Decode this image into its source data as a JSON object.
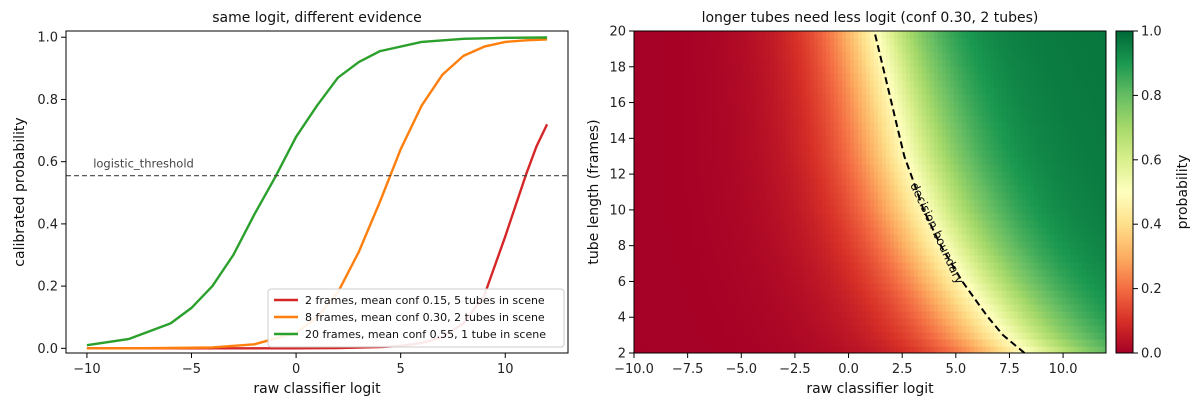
{
  "chart_data": [
    {
      "type": "line",
      "title": "same logit, different evidence",
      "xlabel": "raw classifier logit",
      "ylabel": "calibrated probability",
      "xlim": [
        -11,
        13
      ],
      "ylim": [
        -0.015,
        1.02
      ],
      "xticks": [
        -10,
        -5,
        0,
        5,
        10
      ],
      "yticks": [
        0.0,
        0.2,
        0.4,
        0.6,
        0.8,
        1.0
      ],
      "grid": false,
      "legend_position": "lower-right",
      "threshold": {
        "label": "logistic_threshold",
        "value": 0.555
      },
      "series": [
        {
          "name": "2 frames, mean conf 0.15, 5 tubes in scene",
          "color": "#d62728",
          "x": [
            -10,
            -8,
            -6,
            -4,
            -2,
            0,
            2,
            4,
            5,
            6,
            7,
            8,
            9,
            10,
            10.5,
            11,
            11.5,
            12
          ],
          "y": [
            0.0,
            0.0,
            0.0,
            0.0,
            0.0,
            0.0,
            0.001,
            0.004,
            0.008,
            0.017,
            0.036,
            0.08,
            0.17,
            0.36,
            0.46,
            0.56,
            0.65,
            0.72
          ]
        },
        {
          "name": "8 frames, mean conf 0.30, 2 tubes in scene",
          "color": "#ff7f0e",
          "x": [
            -10,
            -8,
            -6,
            -4,
            -2,
            0,
            1,
            2,
            3,
            4,
            5,
            6,
            7,
            8,
            9,
            10,
            11,
            12
          ],
          "y": [
            0.0,
            0.0,
            0.001,
            0.003,
            0.013,
            0.05,
            0.1,
            0.18,
            0.31,
            0.47,
            0.64,
            0.78,
            0.88,
            0.94,
            0.97,
            0.985,
            0.99,
            0.993
          ]
        },
        {
          "name": "20 frames, mean conf 0.55, 1 tube in scene",
          "color": "#2ca02c",
          "x": [
            -10,
            -8,
            -6,
            -5,
            -4,
            -3,
            -2,
            -1,
            0,
            1,
            2,
            3,
            4,
            6,
            8,
            10,
            12
          ],
          "y": [
            0.01,
            0.03,
            0.08,
            0.13,
            0.2,
            0.3,
            0.43,
            0.55,
            0.68,
            0.78,
            0.87,
            0.92,
            0.955,
            0.985,
            0.995,
            0.998,
            0.999
          ]
        }
      ]
    },
    {
      "type": "heatmap",
      "title": "longer tubes need less logit (conf 0.30, 2 tubes)",
      "xlabel": "raw classifier logit",
      "ylabel": "tube length (frames)",
      "xlim": [
        -10,
        12
      ],
      "ylim": [
        2,
        20
      ],
      "xticks": [
        -10.0,
        -7.5,
        -5.0,
        -2.5,
        0.0,
        2.5,
        5.0,
        7.5,
        10.0
      ],
      "yticks": [
        2,
        4,
        6,
        8,
        10,
        12,
        14,
        16,
        18,
        20
      ],
      "colormap": "RdYlGn",
      "colorbar": {
        "label": "probability",
        "range": [
          0.0,
          1.0
        ],
        "ticks": [
          0.0,
          0.2,
          0.4,
          0.6,
          0.8,
          1.0
        ]
      },
      "decision_boundary": {
        "label": "decision boundary",
        "frames": [
          2,
          3,
          4,
          5,
          6,
          7,
          8,
          9,
          10,
          11,
          12,
          13,
          14,
          15,
          16,
          17,
          18,
          19,
          20
        ],
        "logit": [
          8.2,
          7.2,
          6.5,
          5.9,
          5.3,
          4.8,
          4.3,
          3.9,
          3.5,
          3.2,
          2.9,
          2.6,
          2.4,
          2.2,
          2.0,
          1.8,
          1.6,
          1.4,
          1.2
        ]
      }
    }
  ]
}
